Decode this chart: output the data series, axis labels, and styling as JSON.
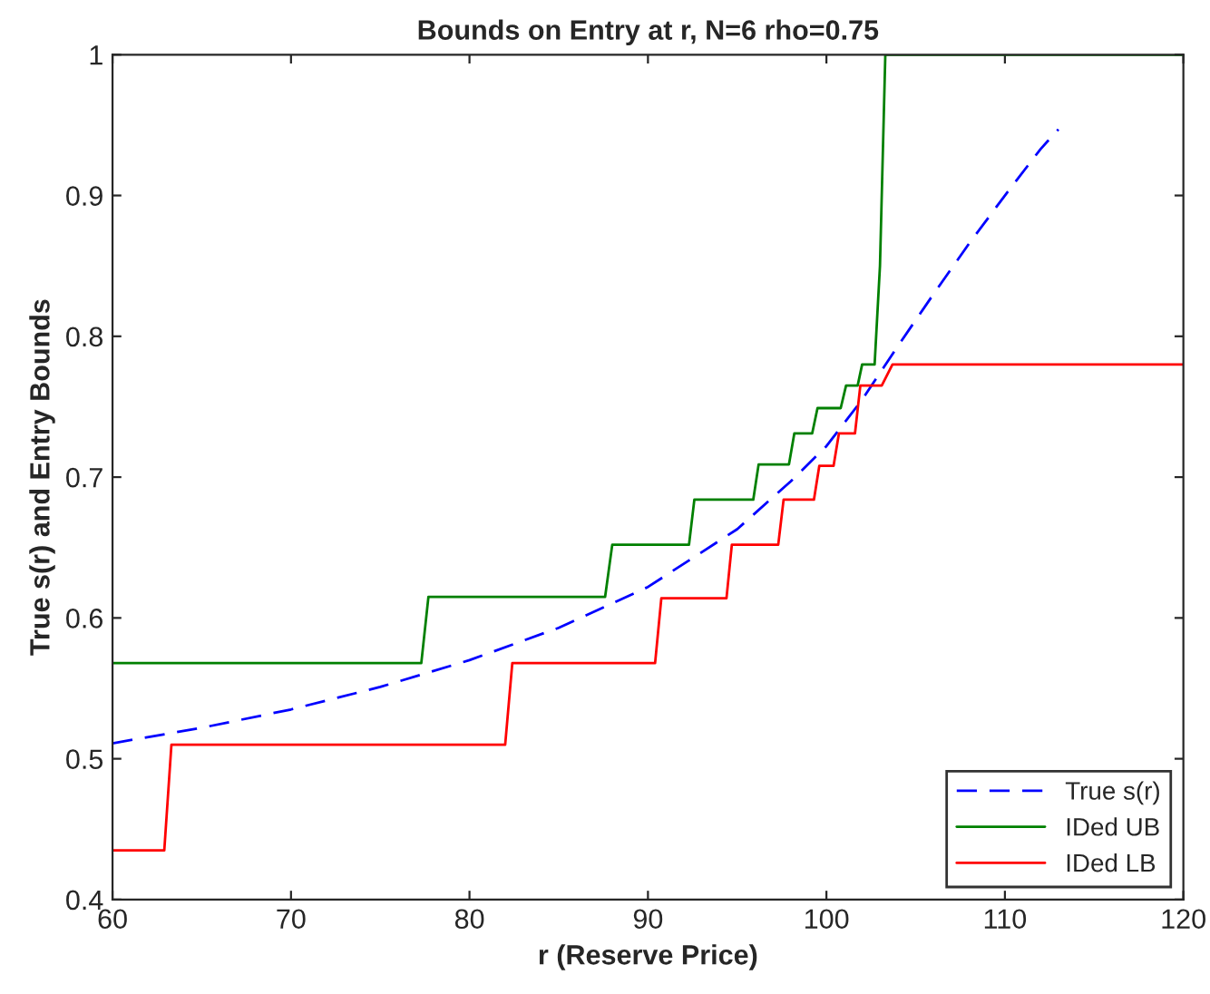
{
  "chart_data": {
    "type": "line",
    "title": "Bounds on Entry at r, N=6 rho=0.75",
    "xlabel": "r (Reserve Price)",
    "ylabel": "True s(r) and Entry Bounds",
    "xlim": [
      60,
      120
    ],
    "ylim": [
      0.4,
      1
    ],
    "xticks": [
      60,
      70,
      80,
      90,
      100,
      110,
      120
    ],
    "yticks": [
      0.4,
      0.5,
      0.6,
      0.7,
      0.8,
      0.9,
      1
    ],
    "grid": false,
    "legend": "bottom right",
    "marker": "none",
    "series": [
      {
        "name": "True s(r)",
        "color": "#0000ff",
        "line_style": "dashed",
        "x": [
          60,
          65,
          70,
          75,
          80,
          85,
          90,
          95,
          98,
          100,
          102,
          104,
          106,
          108,
          110,
          112,
          113
        ],
        "values": [
          0.511,
          0.522,
          0.535,
          0.551,
          0.57,
          0.593,
          0.622,
          0.663,
          0.697,
          0.722,
          0.755,
          0.793,
          0.83,
          0.866,
          0.9,
          0.933,
          0.947
        ]
      },
      {
        "name": "IDed UB",
        "color": "#008000",
        "line_style": "solid",
        "x": [
          60,
          77.3,
          77.7,
          87.6,
          88,
          92.3,
          92.6,
          95.9,
          96.2,
          97.9,
          98.2,
          99.2,
          99.5,
          100.8,
          101.1,
          101.75,
          102,
          102.7,
          103,
          103.3,
          120
        ],
        "values": [
          0.568,
          0.568,
          0.615,
          0.615,
          0.652,
          0.652,
          0.684,
          0.684,
          0.709,
          0.709,
          0.731,
          0.731,
          0.749,
          0.749,
          0.765,
          0.765,
          0.78,
          0.78,
          0.85,
          1,
          1
        ]
      },
      {
        "name": "IDed LB",
        "color": "#ff0000",
        "line_style": "solid",
        "x": [
          60,
          62.9,
          63.3,
          82,
          82.4,
          90.4,
          90.75,
          94.4,
          94.7,
          97.3,
          97.6,
          99.3,
          99.6,
          100.4,
          100.7,
          101.6,
          101.9,
          103.1,
          103.7,
          120
        ],
        "values": [
          0.435,
          0.435,
          0.51,
          0.51,
          0.568,
          0.568,
          0.614,
          0.614,
          0.652,
          0.652,
          0.684,
          0.684,
          0.708,
          0.708,
          0.731,
          0.731,
          0.765,
          0.765,
          0.78,
          0.78
        ]
      }
    ]
  }
}
